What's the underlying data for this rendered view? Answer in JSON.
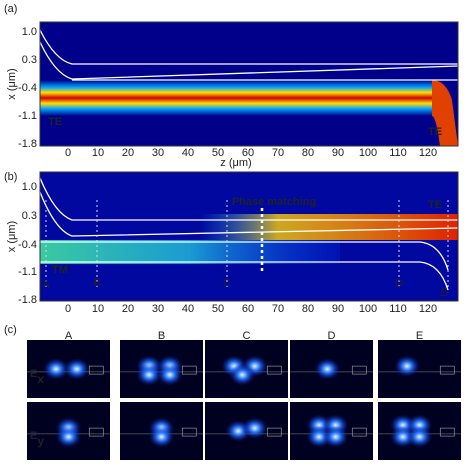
{
  "panels": [
    {
      "label": "(a)",
      "y_axis_label": "x (μm)",
      "y_ticks": [
        "1.0",
        "0.3",
        "-0.4",
        "-1.1",
        "-1.8"
      ],
      "x_ticks": [
        "0",
        "10",
        "20",
        "30",
        "40",
        "50",
        "60",
        "70",
        "80",
        "90",
        "100",
        "110",
        "120"
      ],
      "x_axis_label": "z (μm)",
      "annotations": [
        "TE",
        "TE"
      ]
    },
    {
      "label": "(b)",
      "y_axis_label": "x (μm)",
      "y_ticks": [
        "1.0",
        "0.3",
        "-0.4",
        "-1.1",
        "-1.8"
      ],
      "x_ticks": [
        "0",
        "10",
        "20",
        "30",
        "40",
        "50",
        "60",
        "70",
        "80",
        "90",
        "100",
        "110",
        "120"
      ],
      "annotations": [
        "Phase matching",
        "TE",
        "TM"
      ],
      "markers": [
        "A",
        "B",
        "C",
        "D",
        "E"
      ]
    }
  ],
  "field_panel": {
    "label": "(c)",
    "columns": [
      "A",
      "B",
      "C",
      "D",
      "E"
    ],
    "rows": [
      {
        "component": "E",
        "subscript": "x"
      },
      {
        "component": "E",
        "subscript": "y"
      }
    ]
  }
}
